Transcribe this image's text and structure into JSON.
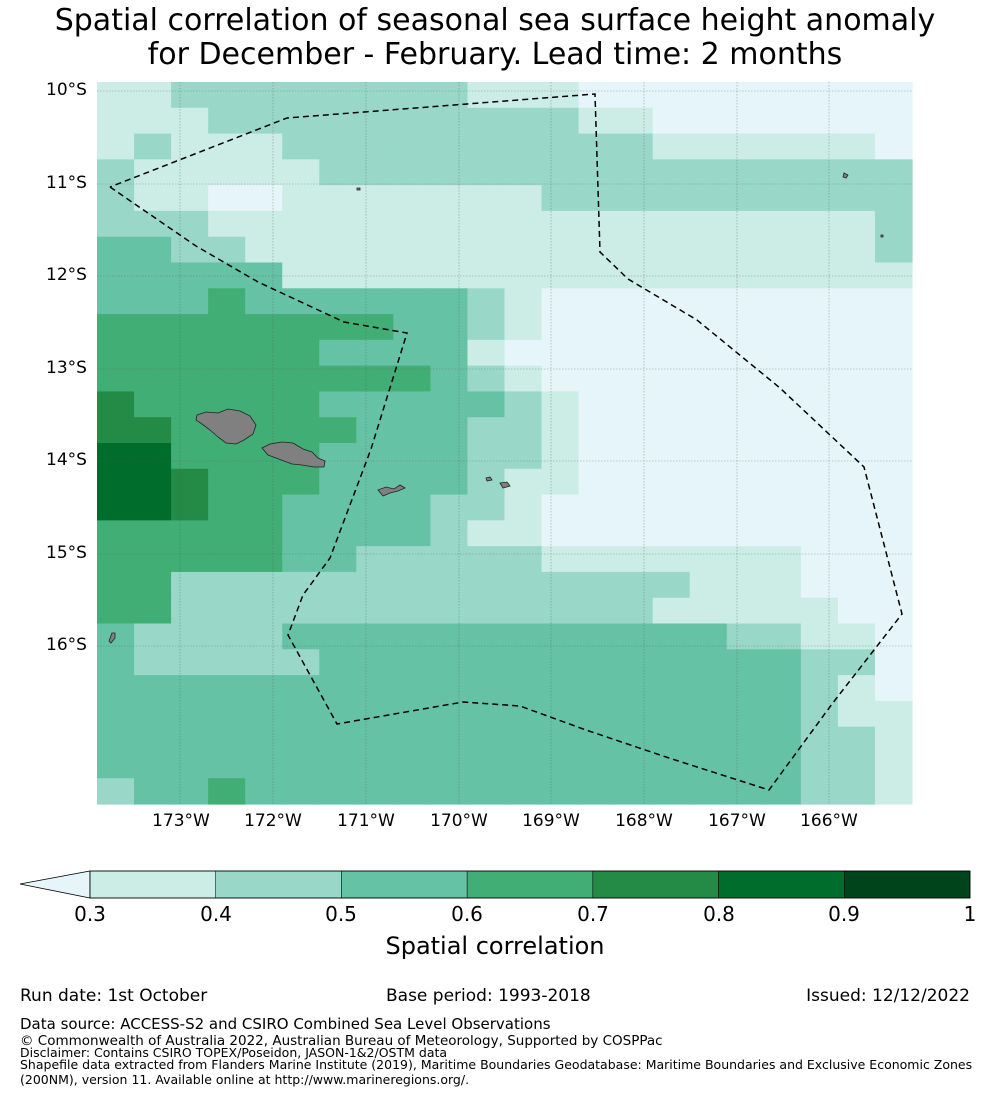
{
  "title": {
    "line1": "Spatial correlation of seasonal sea surface height anomaly",
    "line2": "for December - February. Lead time: 2 months"
  },
  "map": {
    "lat_labels": [
      "10°S",
      "11°S",
      "12°S",
      "13°S",
      "14°S",
      "15°S",
      "16°S"
    ],
    "lon_labels": [
      "173°W",
      "172°W",
      "171°W",
      "170°W",
      "169°W",
      "168°W",
      "167°W",
      "166°W"
    ],
    "colors": [
      "#e5f5f9",
      "#ccece6",
      "#99d8c9",
      "#66c2a4",
      "#41ae76",
      "#238b45",
      "#006d2c",
      "#00441b"
    ],
    "grid_rows": [
      "1122222222111000000000",
      "1112222222222110000000",
      "1211122222222221111110",
      "2111112222222222222222",
      "2110011111112222222222",
      "2221111111111111111112",
      "3322111111111111111112",
      "3333311111111111111111",
      "3334333333210000000000",
      "4444444433210000000000",
      "4444443333100000000000",
      "4444444443210000000000",
      "5444443333321000000000",
      "5544444333221000000000",
      "6644443333221000000000",
      "6654443333211000000000",
      "6654433332210000000000",
      "4444433332110000000000",
      "4444433222221111111000",
      "4422222222222222111000",
      "4422222222222221111100",
      "3222233333333333322110",
      "3222223333333333333220",
      "3333333333333333333210",
      "3333333333333333333211",
      "3333333333333333333221",
      "3333333333333333333221",
      "2334333333333333333221"
    ]
  },
  "colorbar": {
    "ticks": [
      "0.3",
      "0.4",
      "0.5",
      "0.6",
      "0.7",
      "0.8",
      "0.9",
      "1"
    ],
    "label": "Spatial correlation"
  },
  "footer": {
    "run_date": "Run date: 1st October",
    "base_period": "Base period: 1993-2018",
    "issued": "Issued: 12/12/2022",
    "data_source": "Data source: ACCESS-S2 and CSIRO Combined Sea Level Observations",
    "copyright": "© Commonwealth of Australia 2022, Australian Bureau of Meteorology, Supported by COSPPac",
    "disclaimer": "Disclaimer: Contains CSIRO TOPEX/Poseidon, JASON-1&2/OSTM data",
    "shapefile1": "Shapefile data extracted from Flanders Marine Institute (2019), Maritime Boundaries Geodatabase: Maritime Boundaries and Exclusive Economic Zones",
    "shapefile2": "(200NM), version 11. Available online at http://www.marineregions.org/."
  }
}
